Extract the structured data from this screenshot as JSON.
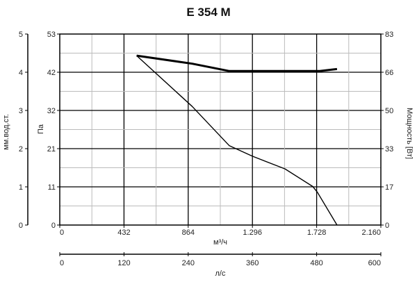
{
  "chart_data": {
    "type": "line",
    "title": "E 354 M",
    "xlabel": "м³/ч",
    "xlabel2": "л/с",
    "ylabel_left_outer": "мм.вод.ст.",
    "ylabel_left": "Па",
    "ylabel_right": "Мощность [Вт]",
    "xlim": [
      0,
      2160
    ],
    "xlim2": [
      0,
      600
    ],
    "ylim": [
      0,
      53
    ],
    "ylim_outer": [
      0,
      5
    ],
    "ylim_right": [
      0,
      83
    ],
    "x_ticks": [
      "0",
      "432",
      "864",
      "1.296",
      "1.728",
      "2.160"
    ],
    "x2_ticks": [
      "0",
      "120",
      "240",
      "360",
      "480",
      "600"
    ],
    "y_ticks": [
      "0",
      "11",
      "21",
      "32",
      "42",
      "53"
    ],
    "y_outer_ticks": [
      "0",
      "1",
      "2",
      "3",
      "4",
      "5"
    ],
    "y_right_ticks": [
      "0",
      "17",
      "33",
      "50",
      "66",
      "83"
    ],
    "grid": true,
    "colors": {
      "curve": "#000000",
      "major_grid": "#000000",
      "minor_grid": "#bbbbbb"
    },
    "series": [
      {
        "axis": "left",
        "points": [
          [
            517,
            47.0
          ],
          [
            891,
            32.9
          ],
          [
            1141,
            22.0
          ],
          [
            1296,
            19.1
          ],
          [
            1515,
            15.6
          ],
          [
            1702,
            10.7
          ],
          [
            1733,
            9.1
          ],
          [
            1865,
            0
          ]
        ]
      },
      {
        "axis": "right",
        "points": [
          [
            517,
            73.6
          ],
          [
            891,
            70.1
          ],
          [
            1141,
            66.9
          ],
          [
            1749,
            66.9
          ],
          [
            1865,
            67.8
          ]
        ]
      }
    ]
  }
}
